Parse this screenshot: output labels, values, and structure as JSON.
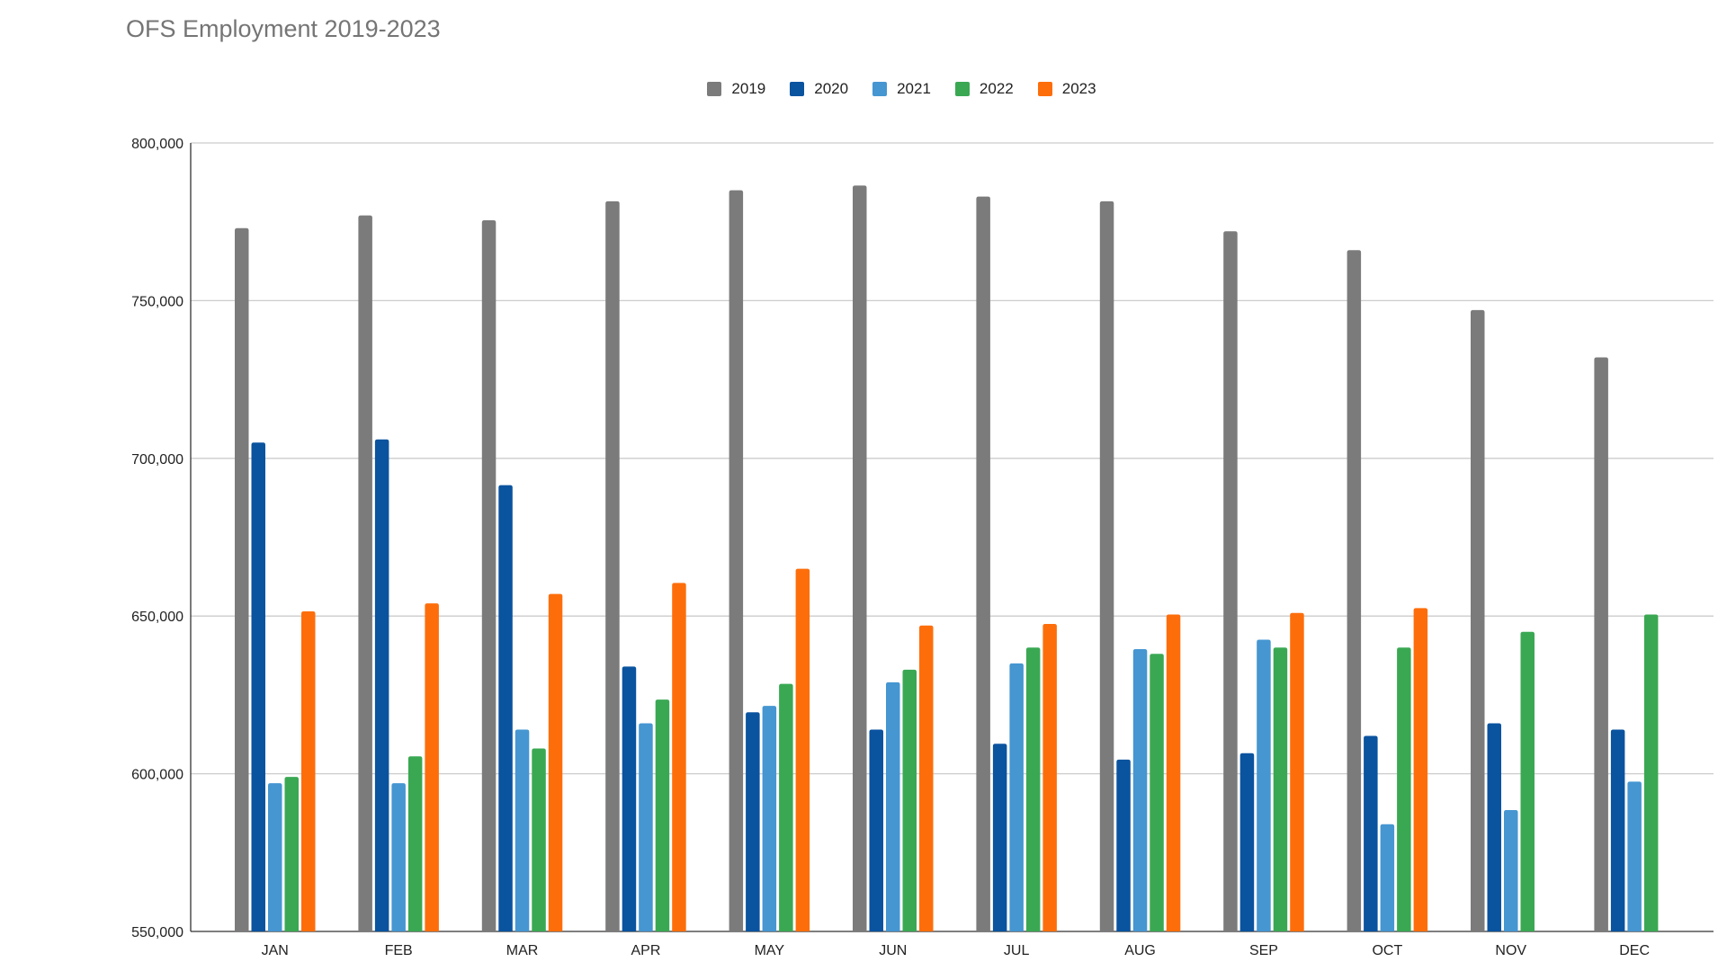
{
  "chart_data": {
    "type": "bar",
    "title": "OFS Employment 2019-2023",
    "xlabel": "",
    "ylabel": "",
    "ylim": [
      550000,
      800000
    ],
    "yticks": [
      550000,
      600000,
      650000,
      700000,
      750000,
      800000
    ],
    "ytick_labels": [
      "550,000",
      "600,000",
      "650,000",
      "700,000",
      "750,000",
      "800,000"
    ],
    "grid": true,
    "legend_position": "top-center",
    "categories": [
      "JAN",
      "FEB",
      "MAR",
      "APR",
      "MAY",
      "JUN",
      "JUL",
      "AUG",
      "SEP",
      "OCT",
      "NOV",
      "DEC"
    ],
    "series": [
      {
        "name": "2019",
        "color": "#7b7b7b",
        "values": [
          773000,
          777000,
          775500,
          781500,
          785000,
          786500,
          783000,
          781500,
          772000,
          766000,
          747000,
          732000
        ]
      },
      {
        "name": "2020",
        "color": "#0a539f",
        "values": [
          705000,
          706000,
          691500,
          634000,
          619500,
          614000,
          609500,
          604500,
          606500,
          612000,
          616000,
          614000
        ]
      },
      {
        "name": "2021",
        "color": "#4596d1",
        "values": [
          597000,
          597000,
          614000,
          616000,
          621500,
          629000,
          635000,
          639500,
          642500,
          584000,
          588500,
          597500
        ]
      },
      {
        "name": "2022",
        "color": "#3aa853",
        "values": [
          599000,
          605500,
          608000,
          623500,
          628500,
          633000,
          640000,
          638000,
          640000,
          640000,
          645000,
          650500
        ]
      },
      {
        "name": "2023",
        "color": "#fd6e0b",
        "values": [
          651500,
          654000,
          657000,
          660500,
          665000,
          647000,
          647500,
          650500,
          651000,
          652500,
          null,
          null
        ]
      }
    ]
  }
}
